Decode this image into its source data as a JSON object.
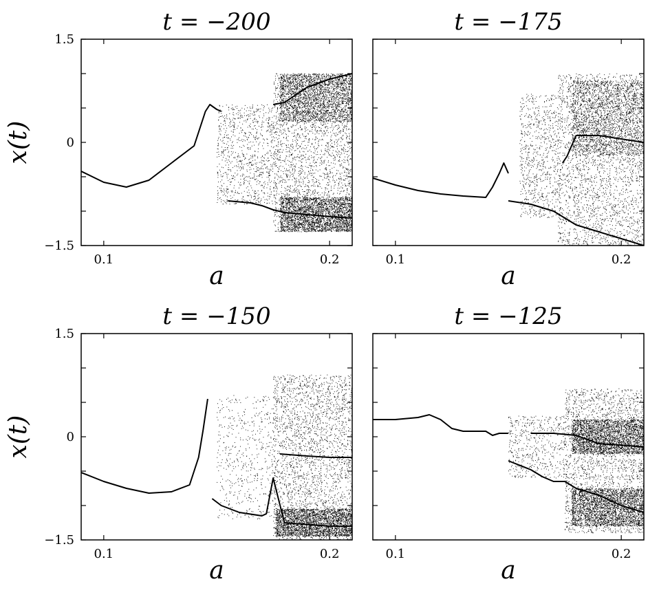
{
  "figure": {
    "colors": {
      "ink": "#000000",
      "background": "#ffffff"
    }
  },
  "chart_data": [
    {
      "type": "scatter",
      "title": "t = −200",
      "xlabel": "a",
      "ylabel": "x(t)",
      "xlim": [
        0.09,
        0.21
      ],
      "ylim": [
        -1.5,
        1.5
      ],
      "xticks": [
        0.1,
        0.2
      ],
      "xtick_labels": [
        "0.1",
        "0.2"
      ],
      "yticks": [
        -1.5,
        0,
        1.5
      ],
      "ytick_labels": [
        "−1.5",
        "0",
        "1.5"
      ],
      "curve": [
        [
          0.09,
          -0.42
        ],
        [
          0.1,
          -0.58
        ],
        [
          0.11,
          -0.65
        ],
        [
          0.12,
          -0.55
        ],
        [
          0.13,
          -0.3
        ],
        [
          0.14,
          -0.05
        ],
        [
          0.145,
          0.45
        ],
        [
          0.147,
          0.55
        ],
        [
          0.15,
          0.48
        ],
        [
          0.152,
          0.45
        ]
      ],
      "lower_branch": [
        [
          0.155,
          -0.85
        ],
        [
          0.165,
          -0.88
        ],
        [
          0.17,
          -0.92
        ],
        [
          0.175,
          -0.98
        ],
        [
          0.18,
          -1.02
        ],
        [
          0.19,
          -1.05
        ],
        [
          0.2,
          -1.08
        ],
        [
          0.21,
          -1.1
        ]
      ],
      "upper_branch": [
        [
          0.175,
          0.55
        ],
        [
          0.18,
          0.58
        ],
        [
          0.19,
          0.8
        ],
        [
          0.2,
          0.92
        ],
        [
          0.21,
          1.0
        ]
      ],
      "chaos_bands": [
        {
          "x0": 0.15,
          "x1": 0.175,
          "y0": -0.9,
          "y1": 0.55,
          "density": 0.35
        },
        {
          "x0": 0.175,
          "x1": 0.21,
          "y0": -1.3,
          "y1": 1.0,
          "density": 1.0
        },
        {
          "x0": 0.178,
          "x1": 0.21,
          "y0": 0.3,
          "y1": 1.0,
          "density": 0.9
        },
        {
          "x0": 0.178,
          "x1": 0.21,
          "y0": -1.3,
          "y1": -0.8,
          "density": 1.0
        }
      ]
    },
    {
      "type": "scatter",
      "title": "t = −175",
      "xlabel": "a",
      "ylabel": "",
      "xlim": [
        0.09,
        0.21
      ],
      "ylim": [
        -1.5,
        1.5
      ],
      "xticks": [
        0.1,
        0.2
      ],
      "xtick_labels": [
        "0.1",
        "0.2"
      ],
      "yticks": [
        -1.5,
        0,
        1.5
      ],
      "ytick_labels": [],
      "curve": [
        [
          0.09,
          -0.52
        ],
        [
          0.1,
          -0.62
        ],
        [
          0.11,
          -0.7
        ],
        [
          0.12,
          -0.75
        ],
        [
          0.13,
          -0.78
        ],
        [
          0.14,
          -0.8
        ],
        [
          0.143,
          -0.65
        ],
        [
          0.146,
          -0.45
        ],
        [
          0.148,
          -0.3
        ],
        [
          0.15,
          -0.45
        ]
      ],
      "lower_branch": [
        [
          0.15,
          -0.85
        ],
        [
          0.16,
          -0.9
        ],
        [
          0.165,
          -0.95
        ],
        [
          0.17,
          -1.0
        ],
        [
          0.175,
          -1.1
        ],
        [
          0.18,
          -1.2
        ],
        [
          0.19,
          -1.3
        ],
        [
          0.2,
          -1.4
        ],
        [
          0.21,
          -1.5
        ]
      ],
      "upper_branch": [
        [
          0.174,
          -0.3
        ],
        [
          0.176,
          -0.2
        ],
        [
          0.18,
          0.1
        ],
        [
          0.19,
          0.1
        ],
        [
          0.21,
          0.0
        ]
      ],
      "chaos_bands": [
        {
          "x0": 0.155,
          "x1": 0.172,
          "y0": -1.1,
          "y1": 0.7,
          "density": 0.3
        },
        {
          "x0": 0.172,
          "x1": 0.21,
          "y0": -1.5,
          "y1": 1.0,
          "density": 1.0
        },
        {
          "x0": 0.178,
          "x1": 0.21,
          "y0": -0.2,
          "y1": 0.9,
          "density": 0.8
        }
      ]
    },
    {
      "type": "scatter",
      "title": "t = −150",
      "xlabel": "a",
      "ylabel": "x(t)",
      "xlim": [
        0.09,
        0.21
      ],
      "ylim": [
        -1.5,
        1.5
      ],
      "xticks": [
        0.1,
        0.2
      ],
      "xtick_labels": [
        "0.1",
        "0.2"
      ],
      "yticks": [
        -1.5,
        0,
        1.5
      ],
      "ytick_labels": [
        "−1.5",
        "0",
        "1.5"
      ],
      "curve": [
        [
          0.09,
          -0.52
        ],
        [
          0.1,
          -0.65
        ],
        [
          0.11,
          -0.75
        ],
        [
          0.12,
          -0.82
        ],
        [
          0.13,
          -0.8
        ],
        [
          0.138,
          -0.7
        ],
        [
          0.142,
          -0.3
        ],
        [
          0.144,
          0.1
        ],
        [
          0.146,
          0.55
        ]
      ],
      "lower_branch": [
        [
          0.148,
          -0.9
        ],
        [
          0.152,
          -1.0
        ],
        [
          0.16,
          -1.1
        ],
        [
          0.17,
          -1.15
        ],
        [
          0.172,
          -1.12
        ],
        [
          0.175,
          -0.6
        ],
        [
          0.18,
          -1.25
        ],
        [
          0.2,
          -1.3
        ],
        [
          0.21,
          -1.3
        ]
      ],
      "upper_branch": [
        [
          0.178,
          -0.25
        ],
        [
          0.19,
          -0.28
        ],
        [
          0.2,
          -0.3
        ],
        [
          0.21,
          -0.3
        ]
      ],
      "chaos_bands": [
        {
          "x0": 0.15,
          "x1": 0.175,
          "y0": -1.2,
          "y1": 0.6,
          "density": 0.2
        },
        {
          "x0": 0.175,
          "x1": 0.21,
          "y0": -1.5,
          "y1": 0.9,
          "density": 1.0
        },
        {
          "x0": 0.176,
          "x1": 0.21,
          "y0": -1.45,
          "y1": -1.05,
          "density": 1.0
        }
      ]
    },
    {
      "type": "scatter",
      "title": "t = −125",
      "xlabel": "a",
      "ylabel": "",
      "xlim": [
        0.09,
        0.21
      ],
      "ylim": [
        -1.5,
        1.5
      ],
      "xticks": [
        0.1,
        0.2
      ],
      "xtick_labels": [
        "0.1",
        "0.2"
      ],
      "yticks": [
        -1.5,
        0,
        1.5
      ],
      "ytick_labels": [],
      "curve": [
        [
          0.09,
          0.25
        ],
        [
          0.1,
          0.25
        ],
        [
          0.11,
          0.28
        ],
        [
          0.115,
          0.32
        ],
        [
          0.12,
          0.25
        ],
        [
          0.125,
          0.12
        ],
        [
          0.13,
          0.08
        ],
        [
          0.14,
          0.08
        ],
        [
          0.143,
          0.02
        ],
        [
          0.146,
          0.05
        ],
        [
          0.15,
          0.05
        ]
      ],
      "lower_branch": [
        [
          0.15,
          -0.35
        ],
        [
          0.16,
          -0.48
        ],
        [
          0.165,
          -0.58
        ],
        [
          0.17,
          -0.65
        ],
        [
          0.175,
          -0.65
        ],
        [
          0.18,
          -0.75
        ],
        [
          0.19,
          -0.85
        ],
        [
          0.2,
          -1.0
        ],
        [
          0.21,
          -1.1
        ]
      ],
      "upper_branch": [
        [
          0.16,
          0.05
        ],
        [
          0.17,
          0.05
        ],
        [
          0.18,
          0.02
        ],
        [
          0.19,
          -0.1
        ],
        [
          0.2,
          -0.12
        ],
        [
          0.21,
          -0.15
        ]
      ],
      "chaos_bands": [
        {
          "x0": 0.15,
          "x1": 0.175,
          "y0": -0.6,
          "y1": 0.3,
          "density": 0.2
        },
        {
          "x0": 0.175,
          "x1": 0.21,
          "y0": -1.4,
          "y1": 0.7,
          "density": 0.9
        },
        {
          "x0": 0.178,
          "x1": 0.21,
          "y0": -0.25,
          "y1": 0.25,
          "density": 1.0
        },
        {
          "x0": 0.178,
          "x1": 0.21,
          "y0": -1.3,
          "y1": -0.75,
          "density": 1.0
        }
      ]
    }
  ]
}
